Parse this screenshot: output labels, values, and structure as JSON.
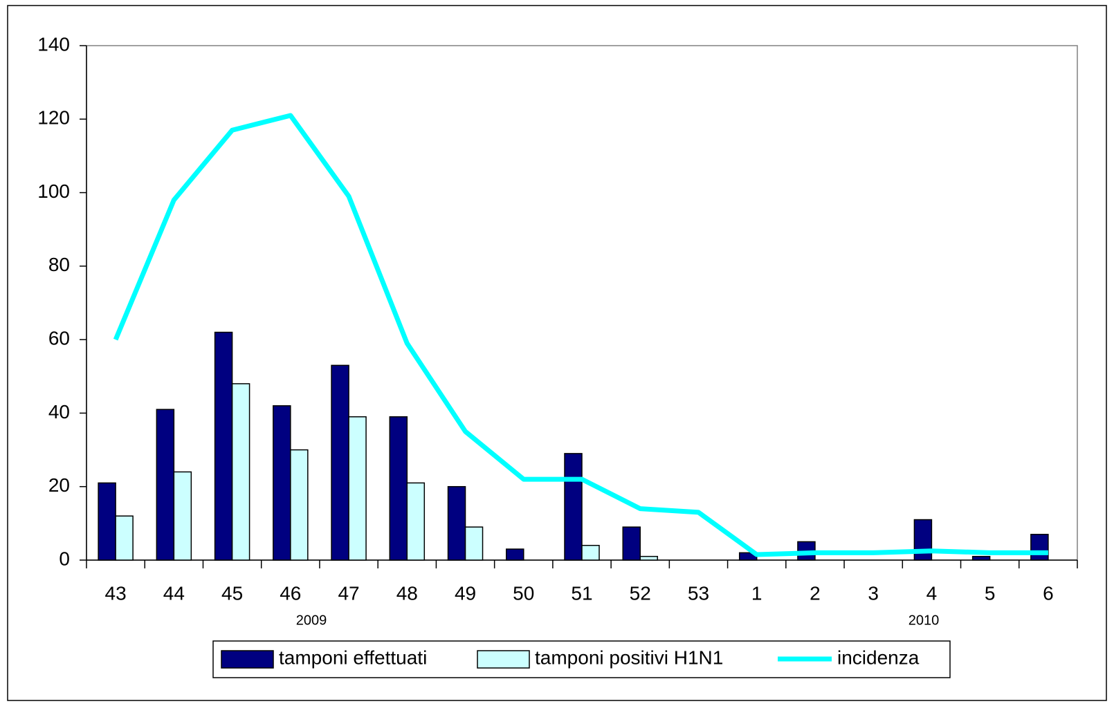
{
  "chart_data": {
    "type": "bar_line",
    "categories": [
      "43",
      "44",
      "45",
      "46",
      "47",
      "48",
      "49",
      "50",
      "51",
      "52",
      "53",
      "1",
      "2",
      "3",
      "4",
      "5",
      "6"
    ],
    "x_group_labels": [
      "2009",
      "2010"
    ],
    "series": [
      {
        "name": "tamponi effettuati",
        "type": "bar",
        "color": "#000080",
        "values": [
          21,
          41,
          62,
          42,
          53,
          39,
          20,
          3,
          29,
          9,
          0,
          2,
          5,
          0,
          11,
          1,
          7
        ]
      },
      {
        "name": "tamponi positivi H1N1",
        "type": "bar",
        "color": "#ccffff",
        "values": [
          12,
          24,
          48,
          30,
          39,
          21,
          9,
          0,
          4,
          1,
          0,
          0,
          0,
          0,
          0,
          0,
          0
        ]
      },
      {
        "name": "incidenza",
        "type": "line",
        "color": "#00ffff",
        "values": [
          60,
          98,
          117,
          121,
          99,
          59,
          35,
          22,
          22,
          14,
          13,
          1.5,
          2,
          2,
          2.5,
          2,
          2
        ]
      }
    ],
    "ylim": [
      0,
      140
    ],
    "yticks": [
      0,
      20,
      40,
      60,
      80,
      100,
      120,
      140
    ],
    "grid": false,
    "legend": "bottom"
  }
}
